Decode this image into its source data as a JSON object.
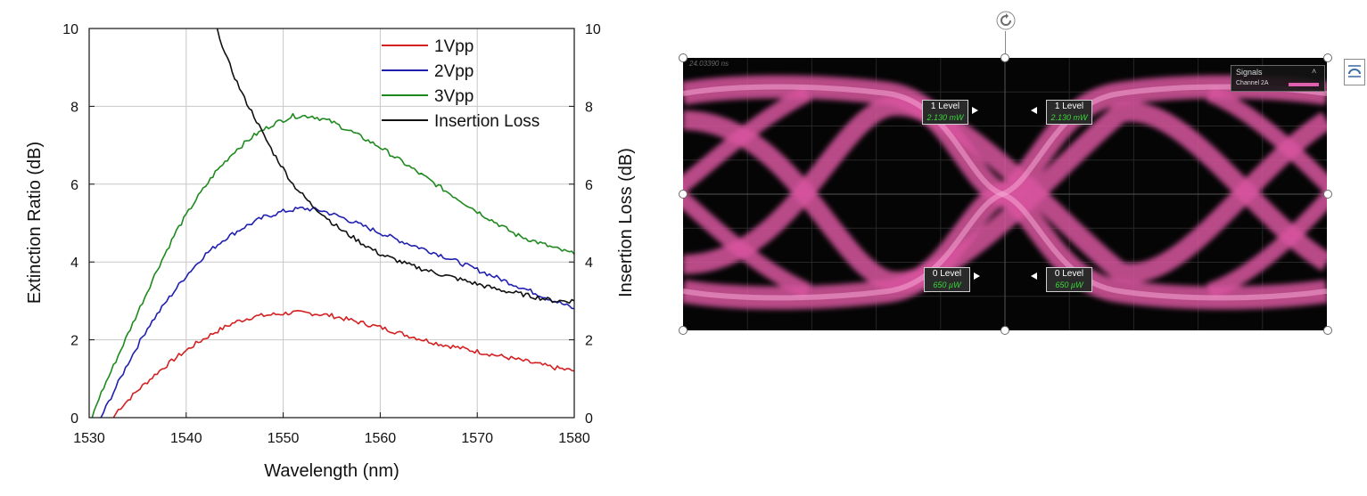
{
  "chart_data": {
    "type": "line",
    "x_axis": {
      "label": "Wavelength (nm)",
      "range": [
        1530,
        1580
      ],
      "ticks": [
        "1530",
        "1540",
        "1550",
        "1560",
        "1570",
        "1580"
      ]
    },
    "y_left_axis": {
      "label": "Extinction Ratio (dB)",
      "range": [
        0,
        10
      ],
      "ticks": [
        "0",
        "2",
        "4",
        "6",
        "8",
        "10"
      ]
    },
    "y_right_axis": {
      "label": "Insertion Loss (dB)",
      "range": [
        0,
        10
      ],
      "ticks": [
        "0",
        "2",
        "4",
        "6",
        "8",
        "10"
      ]
    },
    "grid": true,
    "legend_position": "top-right",
    "series": [
      {
        "name": "1Vpp",
        "color": "#d42020",
        "axis": "left",
        "x": [
          1532.5,
          1533,
          1535,
          1537,
          1539,
          1541,
          1543,
          1545,
          1547,
          1549,
          1551,
          1553,
          1555,
          1557,
          1560,
          1563,
          1566,
          1570,
          1574,
          1578,
          1580
        ],
        "y": [
          0,
          0.2,
          0.7,
          1.15,
          1.55,
          1.9,
          2.2,
          2.45,
          2.6,
          2.65,
          2.7,
          2.68,
          2.62,
          2.5,
          2.32,
          2.1,
          1.9,
          1.7,
          1.5,
          1.28,
          1.2
        ]
      },
      {
        "name": "2Vpp",
        "color": "#2020b0",
        "axis": "left",
        "x": [
          1531.2,
          1532,
          1534,
          1536,
          1538,
          1540,
          1542,
          1544,
          1546,
          1548,
          1550,
          1552,
          1554,
          1556,
          1559,
          1562,
          1566,
          1570,
          1574,
          1578,
          1580
        ],
        "y": [
          0,
          0.4,
          1.4,
          2.3,
          3.0,
          3.65,
          4.2,
          4.6,
          4.9,
          5.15,
          5.3,
          5.38,
          5.32,
          5.15,
          4.85,
          4.55,
          4.2,
          3.8,
          3.4,
          3.0,
          2.8
        ]
      },
      {
        "name": "3Vpp",
        "color": "#1e8a1e",
        "axis": "left",
        "x": [
          1530.3,
          1531,
          1533,
          1535,
          1537,
          1539,
          1541,
          1543,
          1545,
          1547,
          1549,
          1551,
          1553,
          1555,
          1557,
          1560,
          1563,
          1566,
          1570,
          1574,
          1578,
          1580
        ],
        "y": [
          0,
          0.5,
          1.6,
          2.7,
          3.8,
          4.8,
          5.6,
          6.3,
          6.85,
          7.25,
          7.55,
          7.75,
          7.75,
          7.6,
          7.35,
          6.95,
          6.45,
          5.95,
          5.3,
          4.7,
          4.35,
          4.2
        ]
      },
      {
        "name": "Insertion Loss",
        "color": "#111111",
        "axis": "right",
        "x": [
          1543.2,
          1544,
          1545,
          1546,
          1547,
          1548,
          1549,
          1550,
          1551,
          1552,
          1553,
          1554,
          1555,
          1556,
          1558,
          1560,
          1563,
          1566,
          1569,
          1572,
          1575,
          1578,
          1580
        ],
        "y": [
          10,
          9.35,
          8.75,
          8.2,
          7.75,
          7.25,
          6.8,
          6.4,
          6.0,
          5.72,
          5.45,
          5.25,
          5.02,
          4.82,
          4.5,
          4.2,
          3.92,
          3.7,
          3.5,
          3.3,
          3.15,
          3.0,
          3.0
        ]
      }
    ]
  },
  "eye_diagram": {
    "time_readout": "24.03390 ns",
    "signals_panel": {
      "title": "Signals",
      "channel": "Channel 2A",
      "trace_color": "#e060b0"
    },
    "levels": [
      {
        "name": "1 Level",
        "value": "2.130 mW"
      },
      {
        "name": "1 Level",
        "value": "2.130 mW"
      },
      {
        "name": "0 Level",
        "value": "650 µW"
      },
      {
        "name": "0 Level",
        "value": "650 µW"
      }
    ]
  }
}
